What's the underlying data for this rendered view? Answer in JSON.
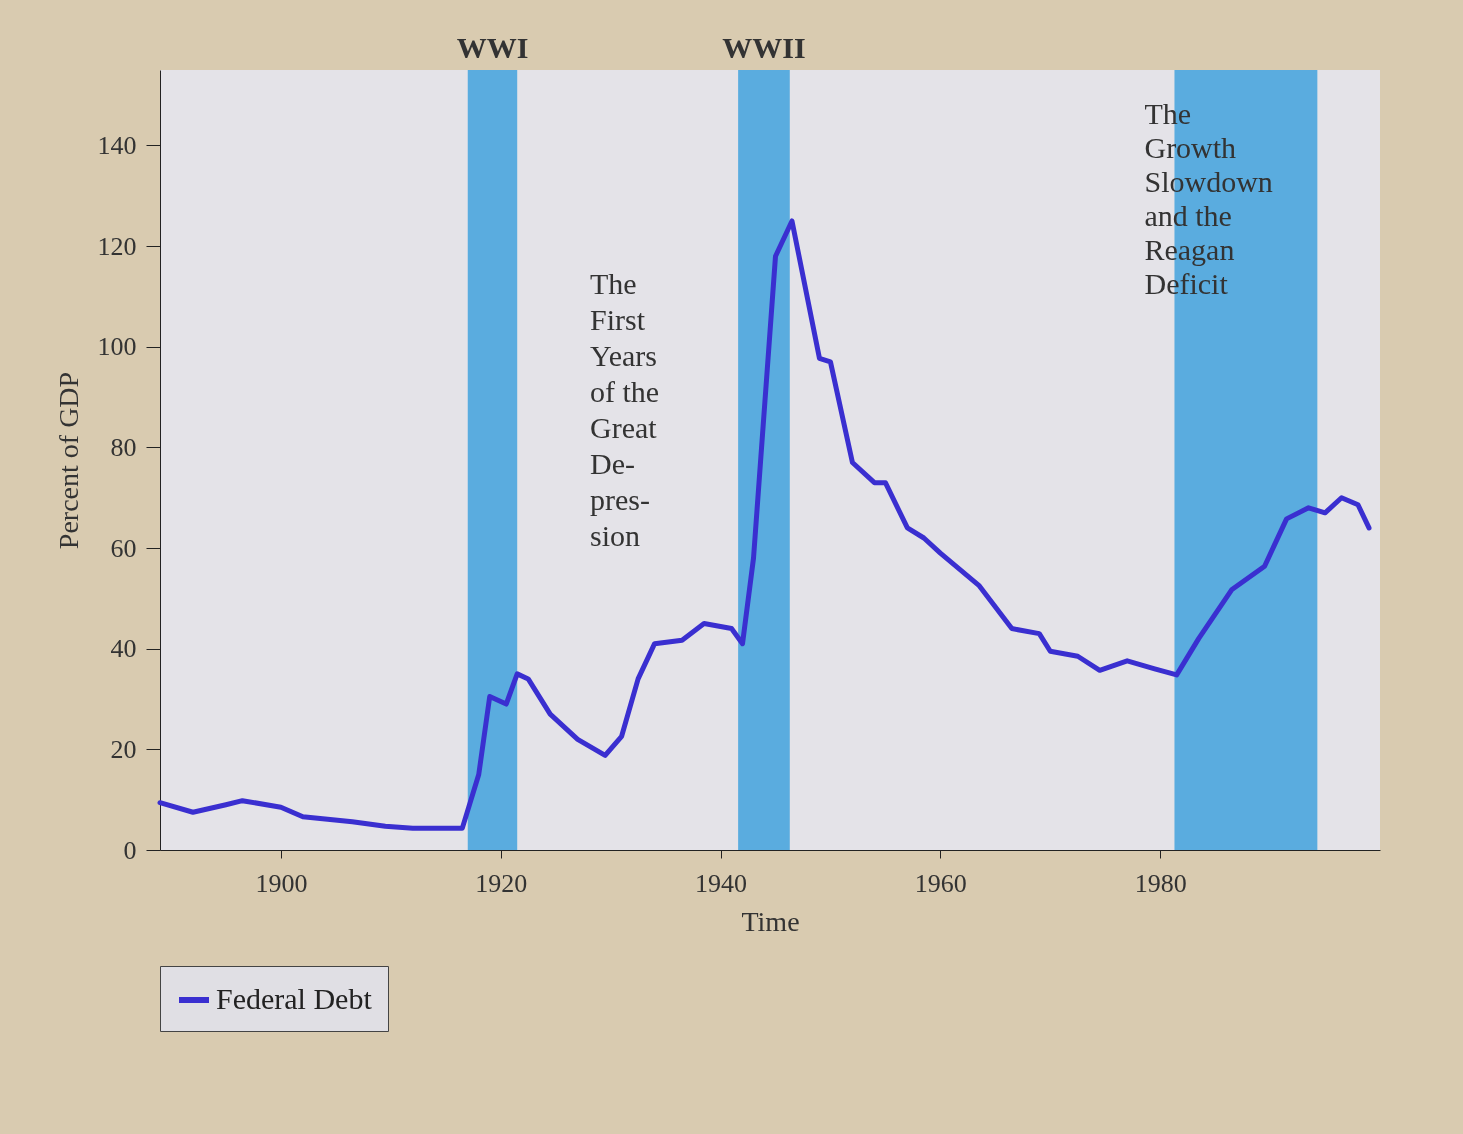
{
  "chart_data": {
    "type": "line",
    "xlabel": "Time",
    "ylabel": "Percent of GDP",
    "x": [
      1889,
      1892,
      1895,
      1896.5,
      1900,
      1902,
      1906.5,
      1909.5,
      1912,
      1916.5,
      1918,
      1919,
      1920.5,
      1921.5,
      1922.5,
      1924.5,
      1927,
      1929.5,
      1931,
      1932.5,
      1934,
      1936.5,
      1938.5,
      1941,
      1942,
      1943,
      1945,
      1946.5,
      1949,
      1950,
      1952,
      1954,
      1955,
      1957,
      1958.5,
      1960,
      1963.5,
      1966.5,
      1969,
      1970,
      1972.5,
      1974.5,
      1977,
      1979.5,
      1981.5,
      1983.5,
      1986.5,
      1989.5,
      1991.5,
      1993.5,
      1995,
      1996.5,
      1998,
      1999
    ],
    "series": [
      {
        "name": "Federal Debt",
        "color": "#3a2fd0",
        "values": [
          9.4,
          7.5,
          9,
          9.8,
          8.5,
          6.6,
          5.6,
          4.7,
          4.3,
          4.3,
          15,
          30.5,
          29,
          35,
          34,
          27,
          22,
          18.8,
          22.6,
          34,
          41,
          41.7,
          45,
          44,
          41,
          58,
          118,
          125,
          97.7,
          97,
          77,
          73,
          73,
          64,
          62,
          59,
          52.6,
          44,
          43,
          39.5,
          38.5,
          35.7,
          37.6,
          36,
          34.8,
          42,
          51.7,
          56.4,
          65.8,
          68,
          67,
          70,
          68.6,
          64
        ]
      }
    ],
    "xlim": [
      1889,
      2000
    ],
    "xticks": [
      1900,
      1920,
      1940,
      1960,
      1980
    ],
    "ylim": [
      0,
      155
    ],
    "yticks": [
      0,
      20,
      40,
      60,
      80,
      100,
      120,
      140
    ],
    "bands": [
      {
        "axis": "x",
        "from": 1917,
        "to": 1921.5,
        "label": "WWI",
        "color": "#5aacdf"
      },
      {
        "axis": "x",
        "from": 1941.6,
        "to": 1946.3,
        "label": "WWII",
        "color": "#5aacdf"
      },
      {
        "axis": "x",
        "from": 1981.3,
        "to": 1994.3,
        "label": "The\nGrowth\nSlowdown\nand the\nReagan\nDeficit",
        "color": "#5aacdf"
      }
    ],
    "annotations": [
      "The\nFirst\nYears\nof the\nGreat\nDe-\npres-\nsion"
    ],
    "grid": false,
    "legend": "bottom",
    "marker": "none",
    "line_style": "solid"
  }
}
